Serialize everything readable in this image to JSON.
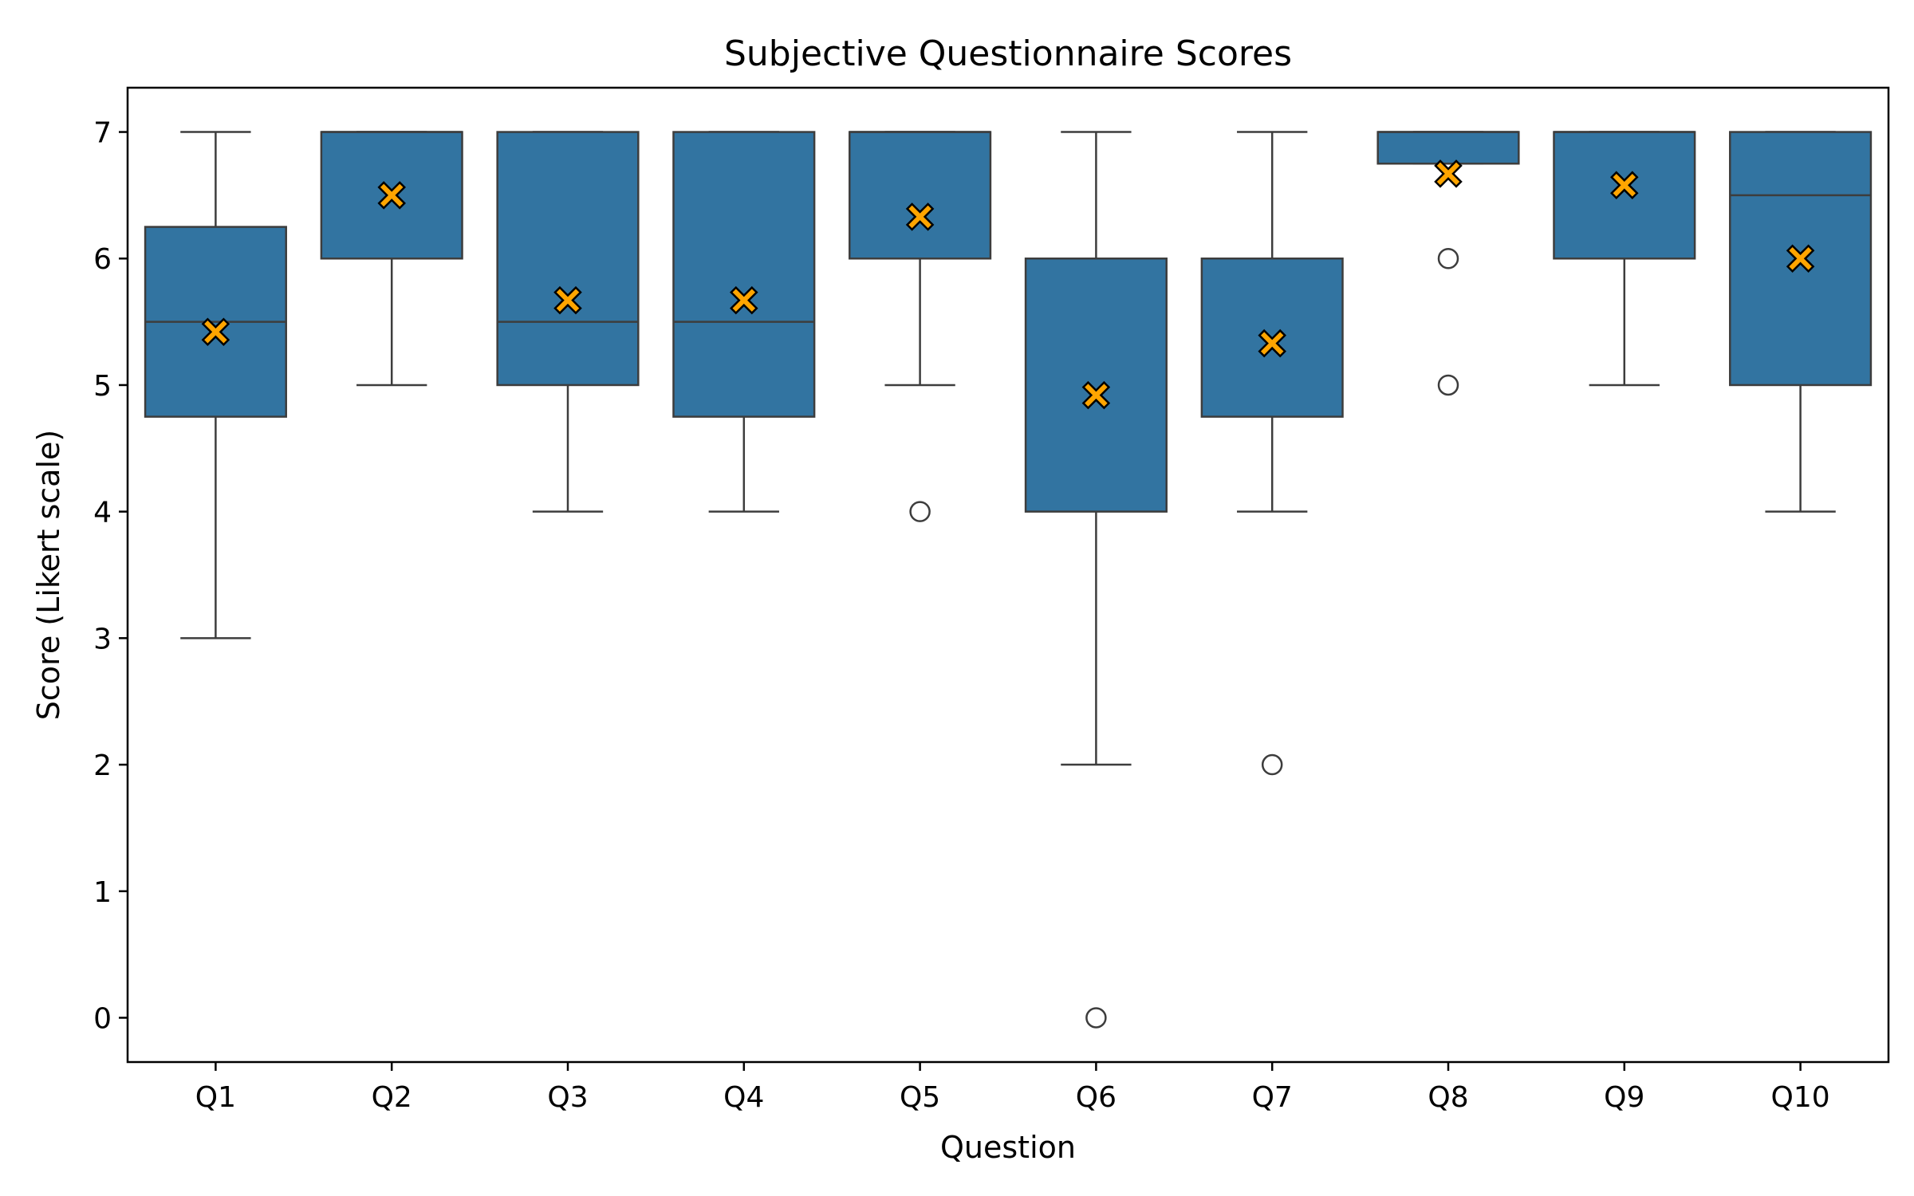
{
  "chart_data": {
    "type": "box",
    "title": "Subjective Questionnaire Scores",
    "xlabel": "Question",
    "ylabel": "Score (Likert scale)",
    "ylim": [
      -0.35,
      7.35
    ],
    "yticks": [
      0,
      1,
      2,
      3,
      4,
      5,
      6,
      7
    ],
    "grid": false,
    "categories": [
      "Q1",
      "Q2",
      "Q3",
      "Q4",
      "Q5",
      "Q6",
      "Q7",
      "Q8",
      "Q9",
      "Q10"
    ],
    "boxes": [
      {
        "category": "Q1",
        "whisker_low": 3,
        "q1": 4.75,
        "median": 5.5,
        "q3": 6.25,
        "whisker_high": 7,
        "mean": 5.42,
        "outliers": []
      },
      {
        "category": "Q2",
        "whisker_low": 5,
        "q1": 6,
        "median": 7,
        "q3": 7,
        "whisker_high": 7,
        "mean": 6.5,
        "outliers": []
      },
      {
        "category": "Q3",
        "whisker_low": 4,
        "q1": 5,
        "median": 5.5,
        "q3": 7,
        "whisker_high": 7,
        "mean": 5.67,
        "outliers": []
      },
      {
        "category": "Q4",
        "whisker_low": 4,
        "q1": 4.75,
        "median": 5.5,
        "q3": 7,
        "whisker_high": 7,
        "mean": 5.67,
        "outliers": []
      },
      {
        "category": "Q5",
        "whisker_low": 5,
        "q1": 6,
        "median": 7,
        "q3": 7,
        "whisker_high": 7,
        "mean": 6.33,
        "outliers": [
          4
        ]
      },
      {
        "category": "Q6",
        "whisker_low": 2,
        "q1": 4,
        "median": 6,
        "q3": 6,
        "whisker_high": 7,
        "mean": 4.92,
        "outliers": [
          0
        ]
      },
      {
        "category": "Q7",
        "whisker_low": 4,
        "q1": 4.75,
        "median": 6,
        "q3": 6,
        "whisker_high": 7,
        "mean": 5.33,
        "outliers": [
          2
        ]
      },
      {
        "category": "Q8",
        "whisker_low": 6.75,
        "q1": 6.75,
        "median": 7,
        "q3": 7,
        "whisker_high": 7,
        "mean": 6.67,
        "outliers": [
          6,
          5
        ]
      },
      {
        "category": "Q9",
        "whisker_low": 5,
        "q1": 6,
        "median": 7,
        "q3": 7,
        "whisker_high": 7,
        "mean": 6.58,
        "outliers": []
      },
      {
        "category": "Q10",
        "whisker_low": 4,
        "q1": 5,
        "median": 6.5,
        "q3": 7,
        "whisker_high": 7,
        "mean": 6,
        "outliers": []
      }
    ],
    "colors": {
      "box_fill": "#3274a1",
      "box_edge": "#3d3d3d",
      "mean_marker": "#ffa500",
      "mean_marker_edge": "#000000",
      "outlier_edge": "#3d3d3d"
    },
    "mean_marker_icon": "x-marker-icon",
    "outlier_marker_icon": "circle-marker-icon"
  }
}
